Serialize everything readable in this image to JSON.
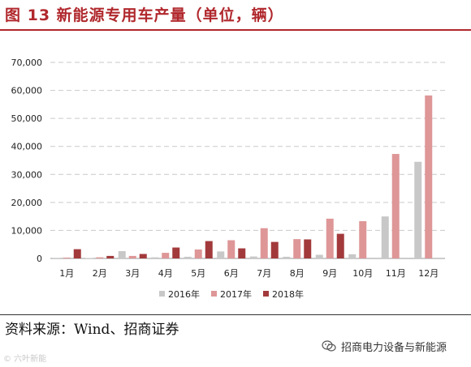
{
  "title": "图 13  新能源专用车产量（单位，辆）",
  "source": "资料来源：Wind、招商证券",
  "watermark": "招商电力设备与新能源",
  "corner_mark": "© 六叶新能",
  "colors": {
    "s2016": "#c8c8c8",
    "s2017": "#de9697",
    "s2018": "#a23a3c",
    "title": "#b0282d"
  },
  "chart_data": {
    "type": "bar",
    "title": "",
    "xlabel": "",
    "ylabel": "",
    "ylim": [
      0,
      70000
    ],
    "yticks": [
      0,
      10000,
      20000,
      30000,
      40000,
      50000,
      60000,
      70000
    ],
    "ytick_labels": [
      "0",
      "10,000",
      "20,000",
      "30,000",
      "40,000",
      "50,000",
      "60,000",
      "70,000"
    ],
    "grid": true,
    "legend_position": "bottom",
    "categories": [
      "1月",
      "2月",
      "3月",
      "4月",
      "5月",
      "6月",
      "7月",
      "8月",
      "9月",
      "10月",
      "11月",
      "12月"
    ],
    "series": [
      {
        "name": "2016年",
        "values": [
          200,
          150,
          2600,
          400,
          600,
          2500,
          700,
          600,
          1300,
          1500,
          15000,
          34500
        ]
      },
      {
        "name": "2017年",
        "values": [
          300,
          400,
          900,
          2000,
          3200,
          6500,
          10800,
          6900,
          14200,
          13300,
          37300,
          58200
        ]
      },
      {
        "name": "2018年",
        "values": [
          3300,
          900,
          1600,
          3900,
          6200,
          3600,
          5900,
          6800,
          8800,
          null,
          null,
          null
        ]
      }
    ]
  }
}
